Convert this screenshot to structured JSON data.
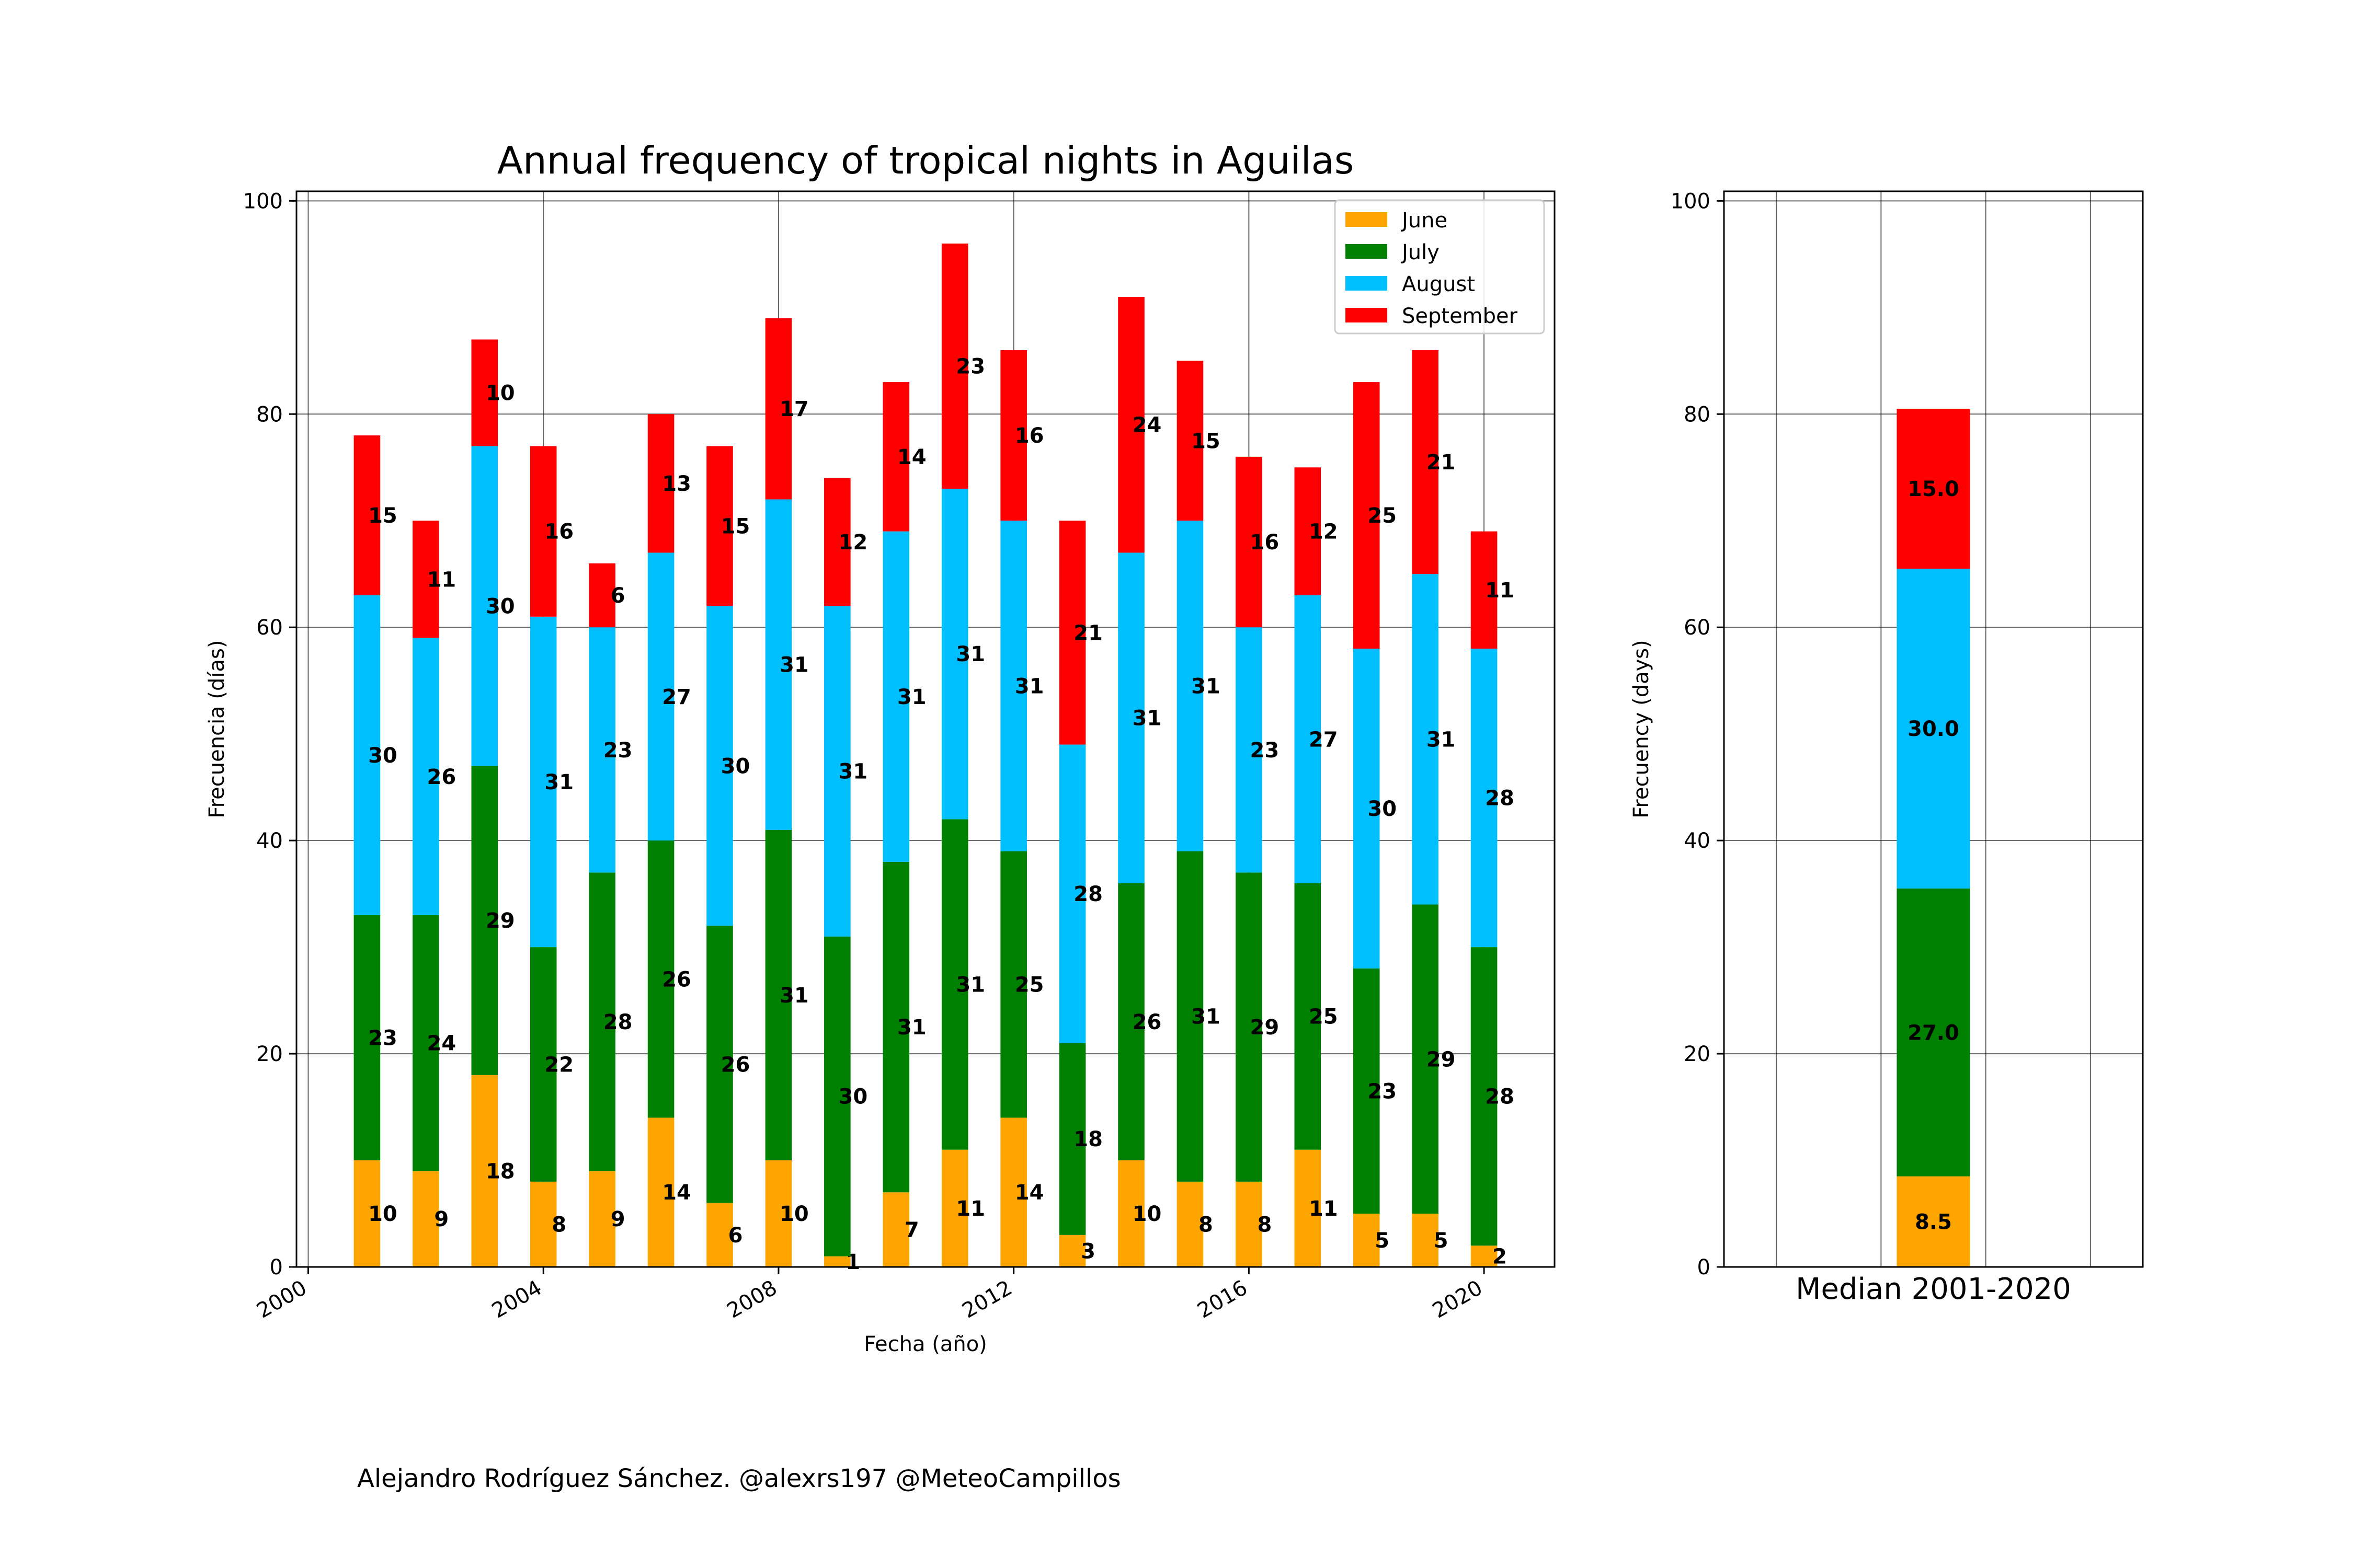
{
  "chart_data": [
    {
      "type": "bar",
      "stacked": true,
      "title": "Annual frequency of tropical nights in Aguilas",
      "xlabel": "Fecha (año)",
      "ylabel": "Frecuencia (días)",
      "x": [
        2001,
        2002,
        2003,
        2004,
        2005,
        2006,
        2007,
        2008,
        2009,
        2010,
        2011,
        2012,
        2013,
        2014,
        2015,
        2016,
        2017,
        2018,
        2019,
        2020
      ],
      "xlim": [
        1999.8,
        2021.2
      ],
      "xticks": [
        "2000",
        "2004",
        "2008",
        "2012",
        "2016",
        "2020"
      ],
      "ylim": [
        0,
        100.9
      ],
      "yticks": [
        "0",
        "20",
        "40",
        "60",
        "80",
        "100"
      ],
      "grid": true,
      "legend_position": "top-right",
      "series": [
        {
          "name": "June",
          "color": "#ffa500",
          "values": [
            10,
            9,
            18,
            8,
            9,
            14,
            6,
            10,
            1,
            7,
            11,
            14,
            3,
            10,
            8,
            8,
            11,
            5,
            5,
            2
          ]
        },
        {
          "name": "July",
          "color": "#008000",
          "values": [
            23,
            24,
            29,
            22,
            28,
            26,
            26,
            31,
            30,
            31,
            31,
            25,
            18,
            26,
            31,
            29,
            25,
            23,
            29,
            28
          ]
        },
        {
          "name": "August",
          "color": "#00bfff",
          "values": [
            30,
            26,
            30,
            31,
            23,
            27,
            30,
            31,
            31,
            31,
            31,
            31,
            28,
            31,
            31,
            23,
            27,
            30,
            31,
            28
          ]
        },
        {
          "name": "September",
          "color": "#ff0000",
          "values": [
            15,
            11,
            10,
            16,
            6,
            13,
            15,
            17,
            12,
            14,
            23,
            16,
            21,
            24,
            15,
            16,
            12,
            25,
            21,
            11
          ]
        }
      ]
    },
    {
      "type": "bar",
      "stacked": true,
      "ylabel": "Frecuency (days)",
      "categories": [
        "Median 2001-2020"
      ],
      "ylim": [
        0,
        100.9
      ],
      "yticks": [
        "0",
        "20",
        "40",
        "60",
        "80",
        "100"
      ],
      "grid": true,
      "series": [
        {
          "name": "June",
          "color": "#ffa500",
          "values": [
            8.5
          ],
          "label": "8.5"
        },
        {
          "name": "July",
          "color": "#008000",
          "values": [
            27.0
          ],
          "label": "27.0"
        },
        {
          "name": "August",
          "color": "#00bfff",
          "values": [
            30.0
          ],
          "label": "30.0"
        },
        {
          "name": "September",
          "color": "#ff0000",
          "values": [
            15.0
          ],
          "label": "15.0"
        }
      ]
    }
  ],
  "footer": {
    "credit": "Alejandro Rodríguez Sánchez. @alexrs197 @MeteoCampillos"
  }
}
